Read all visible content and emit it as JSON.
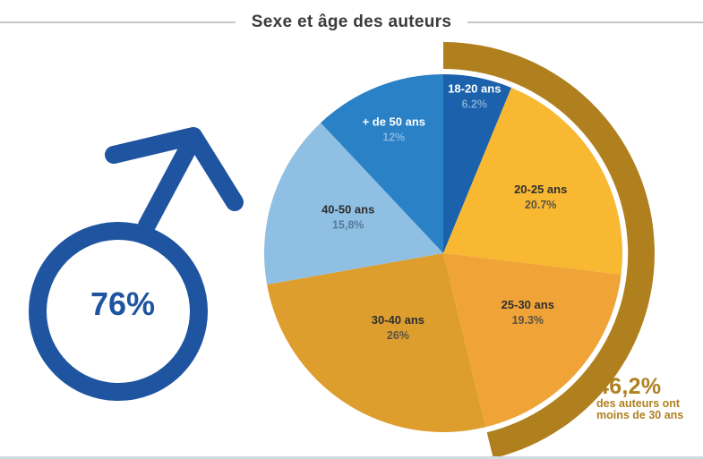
{
  "title": "Sexe et âge des auteurs",
  "male_stat": {
    "value": "76%",
    "icon": "male-sign",
    "color": "#1E54A0"
  },
  "colors": {
    "title_text": "#3b3b3b",
    "divider_rule": "#c6c6c6",
    "bottom_border": "#cfdbe3",
    "highlight_arc": "#B0801F",
    "annotation_text": "#B0801F",
    "male_symbol": "#1E54A0"
  },
  "chart_data": {
    "type": "pie",
    "title": "Sexe et âge des auteurs",
    "start_angle_deg": 0,
    "direction": "clockwise",
    "legend_position": "inside",
    "segments": [
      {
        "label": "18-20 ans",
        "value": 6.2,
        "value_label": "6.2%",
        "color": "#1C61AB",
        "label_color": "#FFFFFF",
        "pct_color": "#7FA9D3"
      },
      {
        "label": "20-25 ans",
        "value": 20.7,
        "value_label": "20.7%",
        "color": "#F8B831",
        "label_color": "#2F2F2F",
        "pct_color": "#5C5244"
      },
      {
        "label": "25-30 ans",
        "value": 19.3,
        "value_label": "19.3%",
        "color": "#F0A437",
        "label_color": "#2F2F2F",
        "pct_color": "#5C5244"
      },
      {
        "label": "30-40 ans",
        "value": 26,
        "value_label": "26%",
        "color": "#DD9E2E",
        "label_color": "#2F2F2F",
        "pct_color": "#5C5244"
      },
      {
        "label": "40-50 ans",
        "value": 15.8,
        "value_label": "15,8%",
        "color": "#8FC0E3",
        "label_color": "#2F2F2F",
        "pct_color": "#57799A"
      },
      {
        "label": "+ de 50 ans",
        "value": 12,
        "value_label": "12%",
        "color": "#2A81C5",
        "label_color": "#FFFFFF",
        "pct_color": "#85B5DD"
      }
    ],
    "highlight_arc": {
      "from_pct": 0,
      "to_pct": 46.2,
      "color": "#B0801F"
    },
    "annotation": {
      "headline": "46,2%",
      "line1": "des auteurs ont",
      "line2": "moins de 30 ans",
      "color": "#B0801F"
    }
  }
}
